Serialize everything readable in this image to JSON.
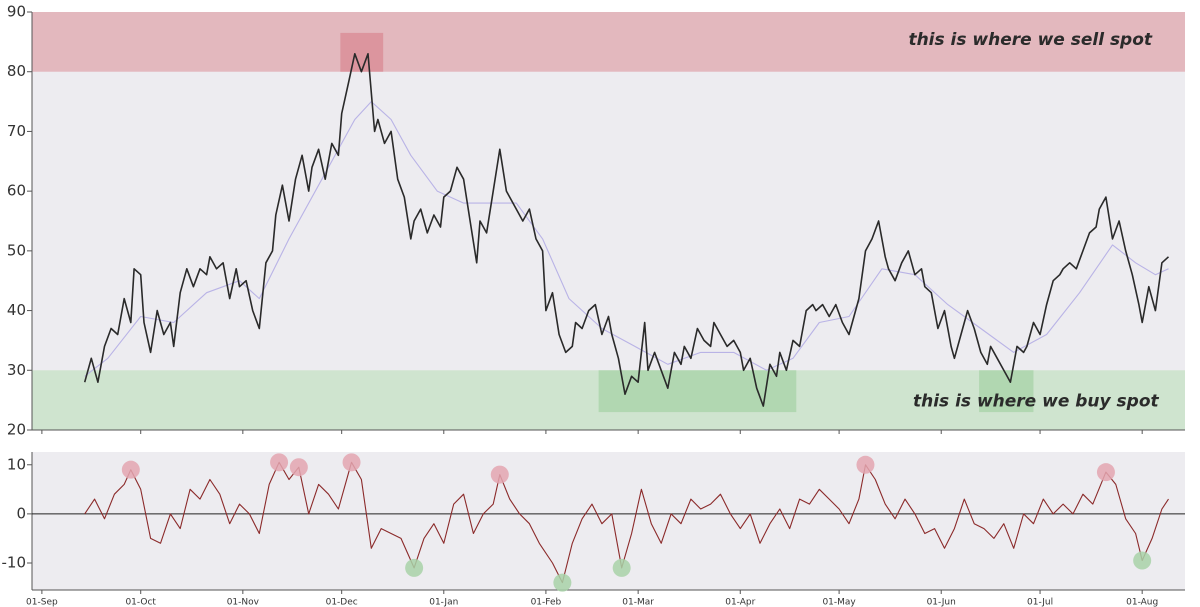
{
  "chart_data": [
    {
      "type": "line",
      "xlim": [
        -3,
        347
      ],
      "ylim": [
        20,
        90
      ],
      "yticks": [
        20,
        30,
        40,
        50,
        60,
        70,
        80,
        90
      ],
      "bands": [
        {
          "from": 80,
          "to": 90,
          "color": "#e3b8be"
        },
        {
          "from": 20,
          "to": 30,
          "color": "#cfe4cf"
        }
      ],
      "highlights": [
        {
          "x": [
            90.6,
            103.6
          ],
          "y": [
            80,
            86.5
          ],
          "color": "#d98c96"
        },
        {
          "x": [
            169,
            229
          ],
          "y": [
            23,
            30
          ],
          "color": "#a9d3a9"
        },
        {
          "x": [
            284.5,
            301
          ],
          "y": [
            23,
            30
          ],
          "color": "#a9d3a9"
        }
      ],
      "annotations": [
        {
          "text": "this is where we sell spot",
          "x": 337,
          "y": 85.3
        },
        {
          "text": "this is where we buy spot",
          "x": 339,
          "y": 24.8
        }
      ],
      "series": [
        {
          "color": "#2a2a2a",
          "x": [
            13,
            15,
            17,
            19,
            21,
            23,
            25,
            27,
            28,
            30,
            31,
            33,
            35,
            37,
            39,
            40,
            42,
            44,
            46,
            48,
            50,
            51,
            53,
            55,
            57,
            59,
            60,
            62,
            64,
            66,
            68,
            70,
            71,
            73,
            75,
            77,
            79,
            81,
            82,
            84,
            86,
            88,
            90,
            91,
            93,
            95,
            97,
            99,
            101,
            102,
            104,
            106,
            108,
            110,
            112,
            113,
            115,
            117,
            119,
            121,
            122,
            124,
            126,
            128,
            130,
            132,
            133,
            135,
            137,
            139,
            141,
            142,
            144,
            146,
            148,
            150,
            152,
            153,
            155,
            157,
            159,
            161,
            162,
            164,
            166,
            168,
            170,
            172,
            173,
            175,
            177,
            179,
            181,
            183,
            184,
            186,
            188,
            190,
            192,
            194,
            195,
            197,
            199,
            201,
            203,
            204,
            206,
            208,
            210,
            212,
            213,
            215,
            217,
            219,
            221,
            223,
            224,
            226,
            228,
            230,
            232,
            234,
            235,
            237,
            239,
            241,
            243,
            245,
            246,
            248,
            250,
            252,
            254,
            256,
            257,
            259,
            261,
            263,
            265,
            267,
            268,
            270,
            272,
            274,
            276,
            277,
            279,
            281,
            283,
            285,
            287,
            288,
            290,
            292,
            294,
            296,
            298,
            299,
            301,
            303,
            305,
            307,
            309,
            310,
            312,
            314,
            316,
            318,
            320,
            321,
            323,
            325,
            327,
            329,
            331,
            333,
            334,
            336,
            338,
            340,
            342
          ],
          "values": [
            28,
            32,
            28,
            34,
            37,
            36,
            42,
            38,
            47,
            46,
            38,
            33,
            40,
            36,
            38,
            34,
            43,
            47,
            44,
            47,
            46,
            49,
            47,
            48,
            42,
            47,
            44,
            45,
            40,
            37,
            48,
            50,
            56,
            61,
            55,
            62,
            66,
            60,
            64,
            67,
            62,
            68,
            66,
            73,
            78,
            83,
            80,
            83,
            70,
            72,
            68,
            70,
            62,
            59,
            52,
            55,
            57,
            53,
            56,
            54,
            59,
            60,
            64,
            62,
            55,
            48,
            55,
            53,
            60,
            67,
            60,
            59,
            57,
            55,
            57,
            52,
            50,
            40,
            43,
            36,
            33,
            34,
            38,
            37,
            40,
            41,
            36,
            39,
            36,
            32,
            26,
            29,
            28,
            38,
            30,
            33,
            30,
            27,
            33,
            31,
            34,
            32,
            37,
            35,
            34,
            38,
            36,
            34,
            35,
            33,
            30,
            32,
            27,
            24,
            31,
            29,
            33,
            30,
            35,
            34,
            40,
            41,
            40,
            41,
            39,
            41,
            38,
            36,
            38,
            42,
            50,
            52,
            55,
            49,
            47,
            45,
            48,
            50,
            46,
            47,
            44,
            43,
            37,
            40,
            34,
            32,
            36,
            40,
            37,
            33,
            31,
            34,
            32,
            30,
            28,
            34,
            33,
            34,
            38,
            36,
            41,
            45,
            46,
            47,
            48,
            47,
            50,
            53,
            54,
            57,
            59,
            52,
            55,
            50,
            46,
            41,
            38,
            44,
            40,
            48,
            49
          ]
        },
        {
          "color": "#b9b3e6",
          "x": [
            13,
            20,
            30,
            40,
            50,
            60,
            66,
            75,
            85,
            95,
            100,
            106,
            112,
            120,
            128,
            136,
            144,
            152,
            160,
            170,
            180,
            190,
            200,
            210,
            220,
            228,
            236,
            245,
            255,
            265,
            275,
            285,
            295,
            305,
            315,
            325,
            332,
            338,
            342
          ],
          "values": [
            29,
            32,
            39,
            38,
            43,
            45,
            42,
            52,
            62,
            72,
            75,
            72,
            66,
            60,
            58,
            58,
            58,
            52,
            42,
            37,
            34,
            31,
            33,
            33,
            30,
            32,
            38,
            39,
            47,
            46,
            41,
            37,
            33,
            36,
            43,
            51,
            48,
            46,
            47
          ]
        }
      ]
    },
    {
      "type": "line",
      "xlim": [
        -3,
        347
      ],
      "ylim": [
        -15.5,
        12.6
      ],
      "yticks": [
        -10,
        0,
        10
      ],
      "zero_line": true,
      "xticks": [
        {
          "value": 0,
          "label": "01-Sep"
        },
        {
          "value": 30,
          "label": "01-Oct"
        },
        {
          "value": 61,
          "label": "01-Nov"
        },
        {
          "value": 91,
          "label": "01-Dec"
        },
        {
          "value": 122,
          "label": "01-Jan"
        },
        {
          "value": 153,
          "label": "01-Feb"
        },
        {
          "value": 181,
          "label": "01-Mar"
        },
        {
          "value": 212,
          "label": "01-Apr"
        },
        {
          "value": 242,
          "label": "01-May"
        },
        {
          "value": 273,
          "label": "01-Jun"
        },
        {
          "value": 303,
          "label": "01-Jul"
        },
        {
          "value": 334,
          "label": "01-Aug"
        }
      ],
      "series": [
        {
          "kind": "line",
          "color": "#8b2a2a",
          "x": [
            13,
            16,
            19,
            22,
            25,
            27,
            30,
            33,
            36,
            39,
            42,
            45,
            48,
            51,
            54,
            57,
            60,
            63,
            66,
            69,
            72,
            75,
            78,
            81,
            84,
            87,
            90,
            94,
            97,
            100,
            103,
            106,
            109,
            113,
            116,
            119,
            122,
            125,
            128,
            131,
            134,
            137,
            139,
            142,
            145,
            148,
            151,
            155,
            158,
            161,
            164,
            167,
            170,
            173,
            176,
            179,
            182,
            185,
            188,
            191,
            194,
            197,
            200,
            203,
            206,
            209,
            212,
            215,
            218,
            221,
            224,
            227,
            230,
            233,
            236,
            239,
            242,
            245,
            248,
            250,
            253,
            256,
            259,
            262,
            265,
            268,
            271,
            274,
            277,
            280,
            283,
            286,
            289,
            292,
            295,
            298,
            301,
            304,
            307,
            310,
            313,
            316,
            319,
            323,
            326,
            329,
            332,
            334,
            337,
            340,
            342
          ],
          "values": [
            0,
            3,
            -1,
            4,
            6,
            9,
            5,
            -5,
            -6,
            0,
            -3,
            5,
            3,
            7,
            4,
            -2,
            2,
            0,
            -4,
            6,
            10.5,
            7,
            9.5,
            0,
            6,
            4,
            1,
            10.5,
            7,
            -7,
            -3,
            -4,
            -5,
            -11,
            -5,
            -2,
            -6,
            2,
            4,
            -4,
            0,
            2,
            8,
            3,
            0,
            -2,
            -6,
            -10,
            -14,
            -6,
            -1,
            2,
            -2,
            0,
            -11,
            -4,
            5,
            -2,
            -6,
            0,
            -2,
            3,
            1,
            2,
            4,
            0,
            -3,
            0,
            -6,
            -2,
            1,
            -3,
            3,
            2,
            5,
            3,
            1,
            -2,
            3,
            10,
            7,
            2,
            -1,
            3,
            0,
            -4,
            -3,
            -7,
            -3,
            3,
            -2,
            -3,
            -5,
            -2,
            -7,
            0,
            -2,
            3,
            0,
            2,
            0,
            4,
            2,
            8.5,
            6,
            -1,
            -4,
            -9.5,
            -5,
            1,
            3
          ]
        },
        {
          "kind": "points",
          "color": "#e3a6b0",
          "x": [
            27,
            72,
            78,
            94,
            139,
            250,
            323
          ],
          "values": [
            9,
            10.5,
            9.5,
            10.5,
            8,
            10,
            8.5
          ]
        },
        {
          "kind": "points",
          "color": "#a8d2a8",
          "x": [
            113,
            158,
            176,
            334
          ],
          "values": [
            -11,
            -14,
            -11,
            -9.5
          ]
        }
      ]
    }
  ]
}
